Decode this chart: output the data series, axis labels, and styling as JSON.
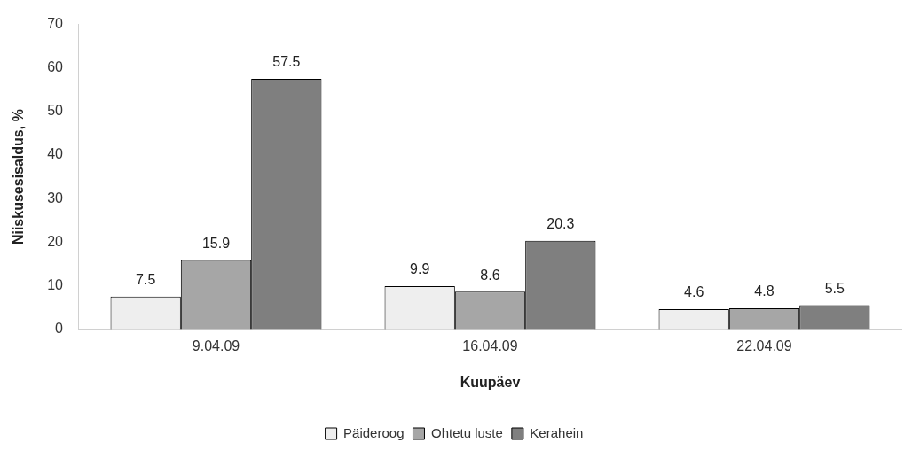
{
  "chart_data": {
    "type": "bar",
    "xlabel": "Kuupäev",
    "ylabel": "Niiskusesisaldus, %",
    "categories": [
      "9.04.09",
      "16.04.09",
      "22.04.09"
    ],
    "series": [
      {
        "name": "Päideroog",
        "color": "#eeeeee",
        "values": [
          7.5,
          9.9,
          4.6
        ]
      },
      {
        "name": "Ohtetu luste",
        "color": "#a6a6a6",
        "values": [
          15.9,
          8.6,
          4.8
        ]
      },
      {
        "name": "Kerahein",
        "color": "#7f7f7f",
        "values": [
          57.5,
          20.3,
          5.5
        ]
      }
    ],
    "ylim": [
      0,
      70
    ],
    "yticks": [
      0,
      10,
      20,
      30,
      40,
      50,
      60,
      70
    ],
    "grid": false,
    "legend": "bottom",
    "data_labels": true
  }
}
